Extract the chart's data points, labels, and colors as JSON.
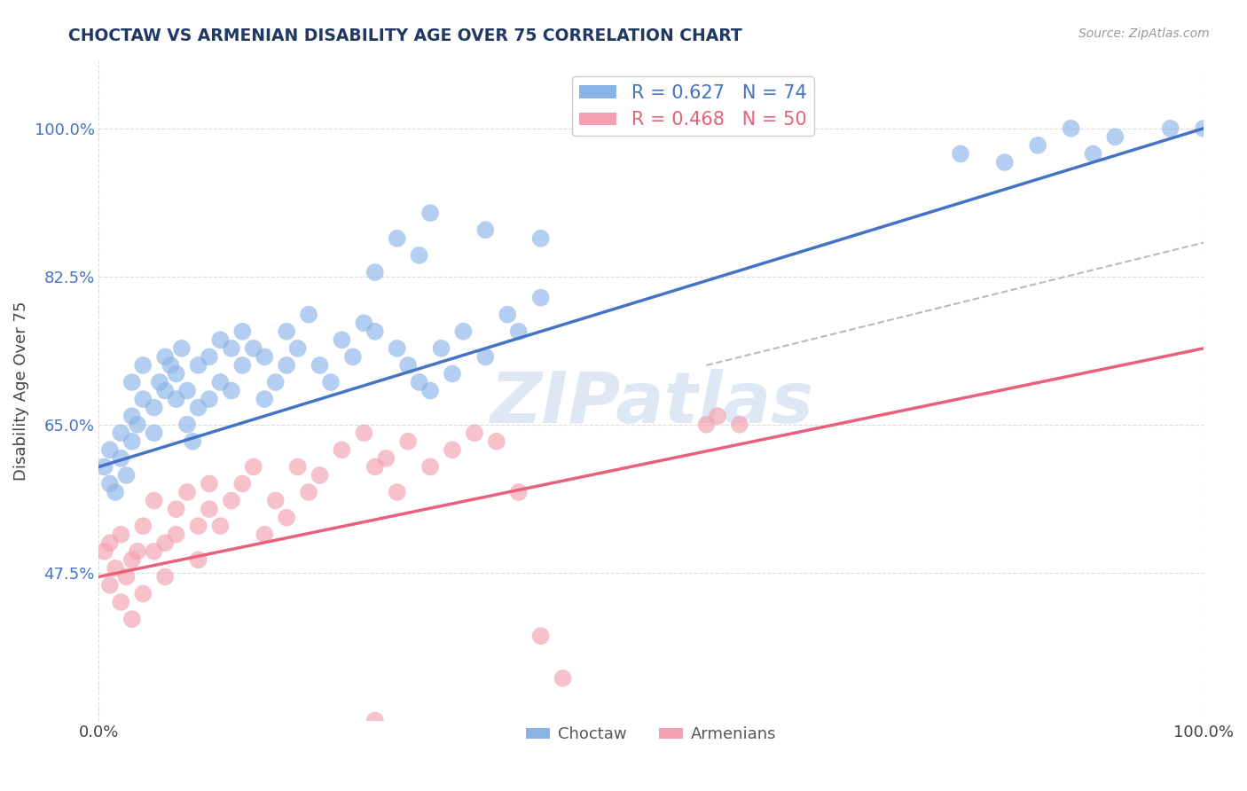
{
  "title": "CHOCTAW VS ARMENIAN DISABILITY AGE OVER 75 CORRELATION CHART",
  "source": "Source: ZipAtlas.com",
  "ylabel": "Disability Age Over 75",
  "y_tick_labels": [
    "47.5%",
    "65.0%",
    "82.5%",
    "100.0%"
  ],
  "y_tick_values": [
    0.475,
    0.65,
    0.825,
    1.0
  ],
  "x_tick_labels": [
    "0.0%",
    "100.0%"
  ],
  "x_tick_values": [
    0.0,
    1.0
  ],
  "x_min": 0.0,
  "x_max": 1.0,
  "y_min": 0.3,
  "y_max": 1.08,
  "legend_label1": "R = 0.627   N = 74",
  "legend_label2": "R = 0.468   N = 50",
  "color_choctaw": "#8AB4E8",
  "color_armenian": "#F4A0B0",
  "color_choctaw_line": "#4472C4",
  "color_armenian_line": "#E8607A",
  "watermark": "ZIPatlas",
  "choctaw_x": [
    0.005,
    0.01,
    0.01,
    0.015,
    0.02,
    0.02,
    0.025,
    0.03,
    0.03,
    0.03,
    0.035,
    0.04,
    0.04,
    0.05,
    0.05,
    0.055,
    0.06,
    0.06,
    0.065,
    0.07,
    0.07,
    0.075,
    0.08,
    0.08,
    0.085,
    0.09,
    0.09,
    0.1,
    0.1,
    0.11,
    0.11,
    0.12,
    0.12,
    0.13,
    0.13,
    0.14,
    0.15,
    0.15,
    0.16,
    0.17,
    0.17,
    0.18,
    0.19,
    0.2,
    0.21,
    0.22,
    0.23,
    0.24,
    0.25,
    0.27,
    0.28,
    0.29,
    0.3,
    0.31,
    0.32,
    0.33,
    0.35,
    0.37,
    0.38,
    0.4,
    0.25,
    0.27,
    0.29,
    0.3,
    0.35,
    0.4,
    0.78,
    0.82,
    0.85,
    0.88,
    0.9,
    0.92,
    0.97,
    1.0
  ],
  "choctaw_y": [
    0.6,
    0.58,
    0.62,
    0.57,
    0.61,
    0.64,
    0.59,
    0.63,
    0.66,
    0.7,
    0.65,
    0.68,
    0.72,
    0.64,
    0.67,
    0.7,
    0.69,
    0.73,
    0.72,
    0.68,
    0.71,
    0.74,
    0.65,
    0.69,
    0.63,
    0.67,
    0.72,
    0.68,
    0.73,
    0.7,
    0.75,
    0.69,
    0.74,
    0.72,
    0.76,
    0.74,
    0.68,
    0.73,
    0.7,
    0.72,
    0.76,
    0.74,
    0.78,
    0.72,
    0.7,
    0.75,
    0.73,
    0.77,
    0.76,
    0.74,
    0.72,
    0.7,
    0.69,
    0.74,
    0.71,
    0.76,
    0.73,
    0.78,
    0.76,
    0.8,
    0.83,
    0.87,
    0.85,
    0.9,
    0.88,
    0.87,
    0.97,
    0.96,
    0.98,
    1.0,
    0.97,
    0.99,
    1.0,
    1.0
  ],
  "armenian_x": [
    0.005,
    0.01,
    0.01,
    0.015,
    0.02,
    0.02,
    0.025,
    0.03,
    0.03,
    0.035,
    0.04,
    0.04,
    0.05,
    0.05,
    0.06,
    0.06,
    0.07,
    0.07,
    0.08,
    0.09,
    0.09,
    0.1,
    0.1,
    0.11,
    0.12,
    0.13,
    0.14,
    0.15,
    0.16,
    0.17,
    0.18,
    0.19,
    0.2,
    0.22,
    0.24,
    0.25,
    0.26,
    0.27,
    0.28,
    0.3,
    0.32,
    0.34,
    0.36,
    0.38,
    0.4,
    0.42,
    0.25,
    0.55,
    0.56,
    0.58
  ],
  "armenian_y": [
    0.5,
    0.46,
    0.51,
    0.48,
    0.44,
    0.52,
    0.47,
    0.42,
    0.49,
    0.5,
    0.45,
    0.53,
    0.5,
    0.56,
    0.51,
    0.47,
    0.55,
    0.52,
    0.57,
    0.53,
    0.49,
    0.55,
    0.58,
    0.53,
    0.56,
    0.58,
    0.6,
    0.52,
    0.56,
    0.54,
    0.6,
    0.57,
    0.59,
    0.62,
    0.64,
    0.6,
    0.61,
    0.57,
    0.63,
    0.6,
    0.62,
    0.64,
    0.63,
    0.57,
    0.4,
    0.35,
    0.3,
    0.65,
    0.66,
    0.65
  ],
  "choctaw_line_x": [
    0.0,
    1.0
  ],
  "choctaw_line_y": [
    0.6,
    1.0
  ],
  "armenian_line_x": [
    0.0,
    1.0
  ],
  "armenian_line_y": [
    0.47,
    0.74
  ],
  "dashed_line_x": [
    0.55,
    1.0
  ],
  "dashed_line_y": [
    0.72,
    0.865
  ],
  "grid_color": "#DDDDDD",
  "background_color": "#FFFFFF",
  "title_color": "#1F3864",
  "axis_label_color": "#444444",
  "tick_label_color_y": "#4472C4",
  "tick_label_color_x": "#444444",
  "legend_color1": "#4472C4",
  "legend_color2": "#E8607A"
}
